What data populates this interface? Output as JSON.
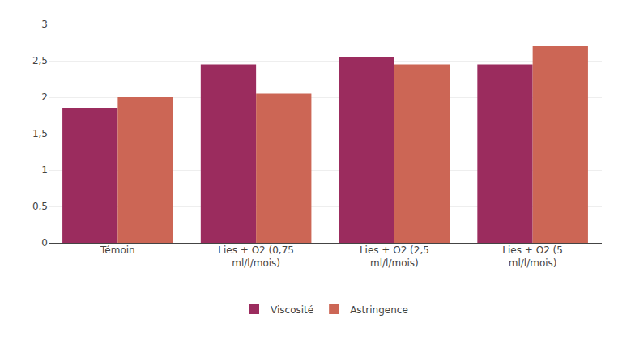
{
  "chart_data": {
    "type": "bar",
    "categories": [
      "Témoin",
      "Lies + O2 (0,75\nml/l/mois)",
      "Lies + O2 (2,5\nml/l/mois)",
      "Lies + O2 (5\nml/l/mois)"
    ],
    "series": [
      {
        "name": "Viscosité",
        "color": "#9B2C5E",
        "values": [
          1.85,
          2.45,
          2.55,
          2.45
        ]
      },
      {
        "name": "Astringence",
        "color": "#CC6655",
        "values": [
          2.0,
          2.05,
          2.45,
          2.7
        ]
      }
    ],
    "ylim": [
      0,
      3.0
    ],
    "yticks": [
      0,
      {
        "value": 0.5,
        "label": "0,5"
      },
      1,
      {
        "value": 1.5,
        "label": "1,5"
      },
      2,
      {
        "value": 2.5,
        "label": "2,5"
      },
      3
    ],
    "grid": true,
    "legend": "bottom"
  }
}
